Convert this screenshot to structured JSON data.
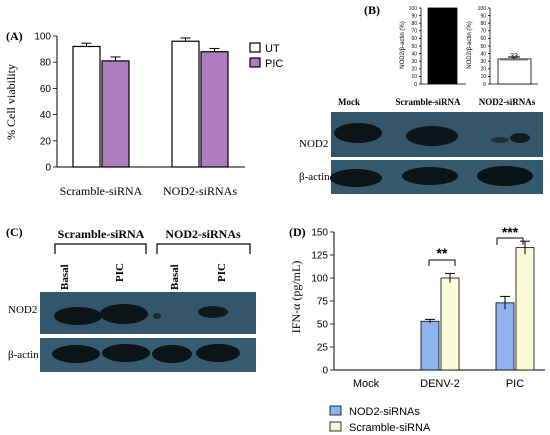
{
  "panels": {
    "a": "(A)",
    "b": "(B)",
    "c": "(C)",
    "d": "(D)"
  },
  "panel_b": {
    "lanes": [
      "Mock",
      "Scramble-siRNA",
      "NOD2-siRNAs"
    ],
    "rows": [
      "NOD2",
      "β-actin"
    ]
  },
  "panel_c": {
    "groups": [
      "Scramble-siRNA",
      "NOD2-siRNAs"
    ],
    "lanes": [
      "Basal",
      "PIC",
      "Basal",
      "PIC"
    ],
    "rows": [
      "NOD2",
      "β-actin"
    ]
  },
  "colors": {
    "ut": "#ffffff",
    "pic": "#b07cc0",
    "nod2": "#8fb3ef",
    "scramble": "#fafad8",
    "blot_bg": "#33566b",
    "band": "#0c1417"
  },
  "chart_data": [
    {
      "id": "A",
      "type": "bar",
      "categories": [
        "Scramble-siRNA",
        "NOD2-siRNAs"
      ],
      "series": [
        {
          "name": "UT",
          "values": [
            92,
            96
          ],
          "errors": [
            2.5,
            2.5
          ]
        },
        {
          "name": "PIC",
          "values": [
            81,
            88
          ],
          "errors": [
            3,
            2.5
          ]
        }
      ],
      "ylabel": "% Cell viability",
      "ylim": [
        0,
        100
      ],
      "yticks": [
        0,
        20,
        40,
        60,
        80,
        100
      ],
      "legend": "top-right"
    },
    {
      "id": "B-left",
      "type": "bar",
      "categories": [
        ""
      ],
      "values": [
        100
      ],
      "ylabel": "NOD2/β-actin (%)",
      "ylim": [
        0,
        100
      ],
      "yticks": [
        0,
        10,
        20,
        30,
        40,
        50,
        60,
        70,
        80,
        90,
        100
      ]
    },
    {
      "id": "B-right",
      "type": "bar",
      "categories": [
        ""
      ],
      "values": [
        33
      ],
      "labels": [
        "33"
      ],
      "ylabel": "NOD2/β-actin (%)",
      "ylim": [
        0,
        100
      ],
      "yticks": [
        0,
        10,
        20,
        30,
        40,
        50,
        60,
        70,
        80,
        90,
        100
      ]
    },
    {
      "id": "D",
      "type": "bar",
      "categories": [
        "Mock",
        "DENV-2",
        "PIC"
      ],
      "series": [
        {
          "name": "NOD2-siRNAs",
          "values": [
            0,
            53,
            73
          ],
          "errors": [
            0,
            2,
            7
          ]
        },
        {
          "name": "Scramble-siRNA",
          "values": [
            0,
            100,
            133
          ],
          "errors": [
            0,
            5,
            7
          ]
        }
      ],
      "ylabel": "IFN-α (pg/mL)",
      "ylim": [
        0,
        150
      ],
      "yticks": [
        0,
        25,
        50,
        75,
        100,
        125,
        150
      ],
      "annotations": [
        "**",
        "***"
      ],
      "legend": "bottom"
    }
  ]
}
